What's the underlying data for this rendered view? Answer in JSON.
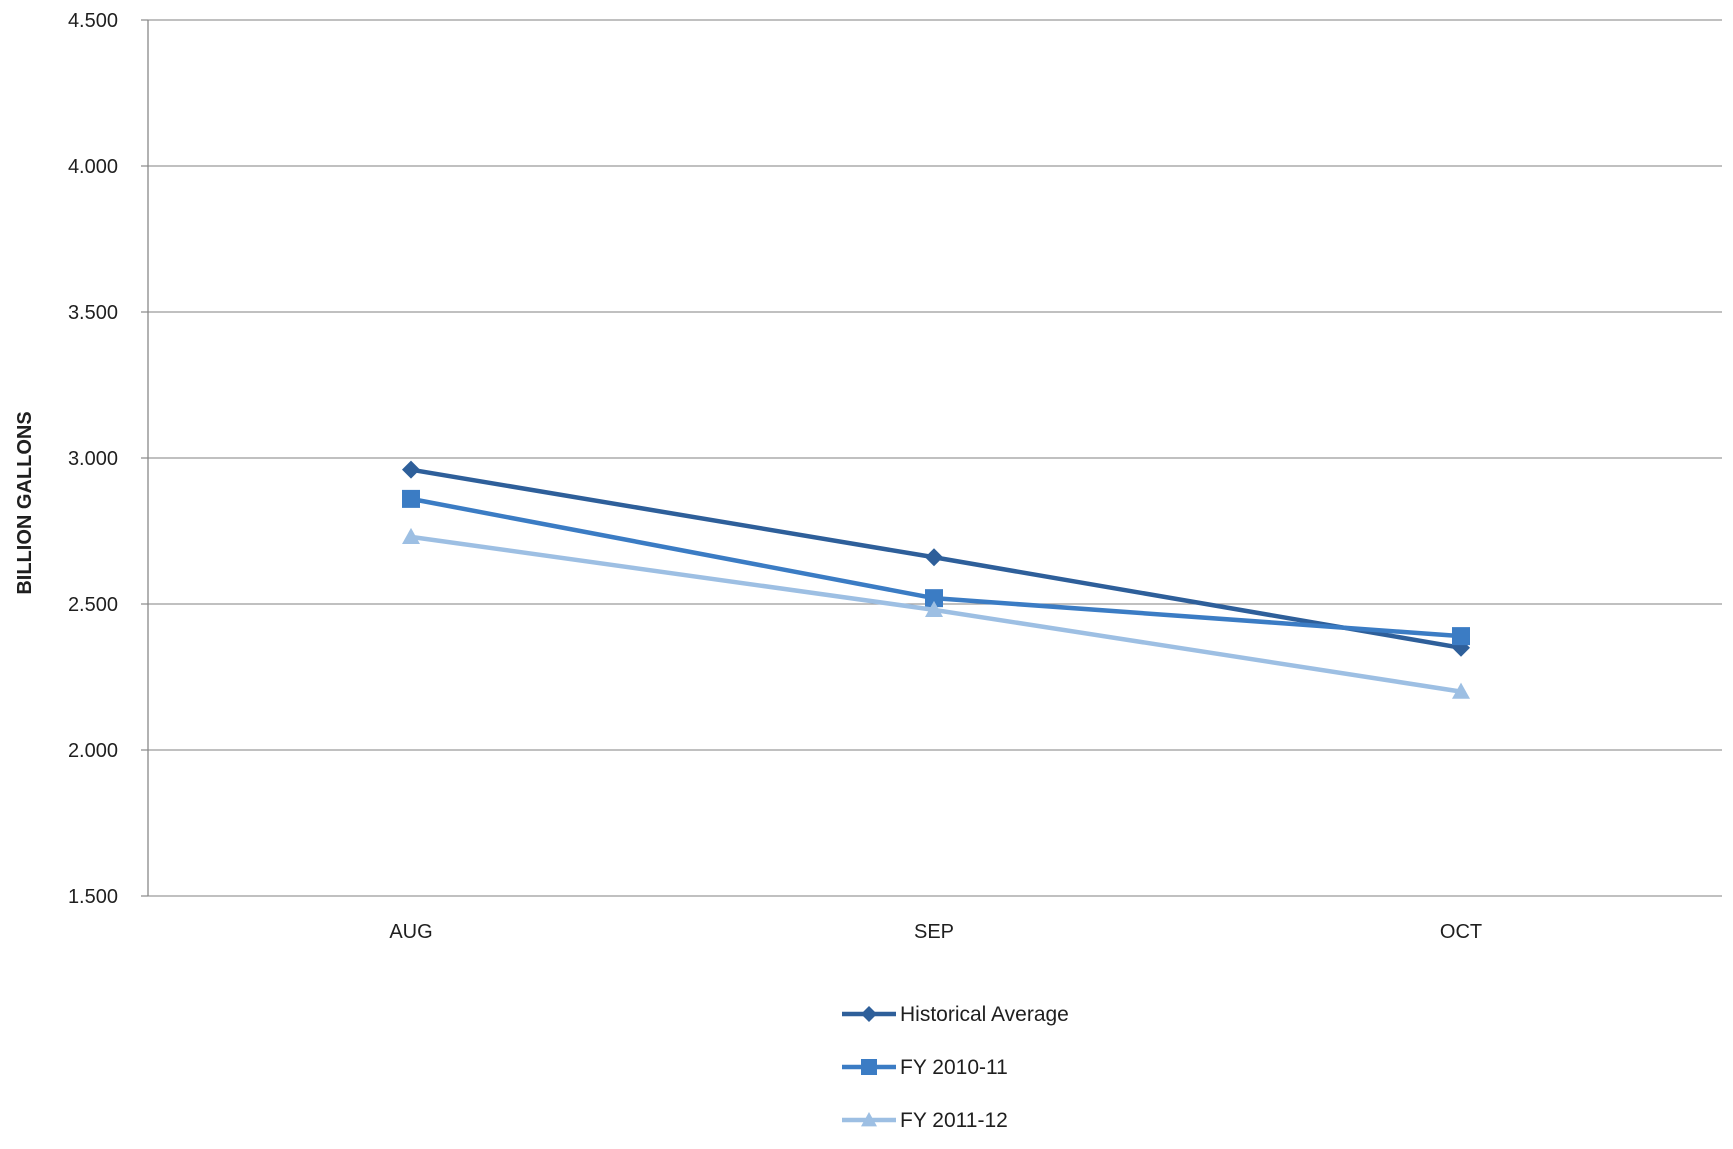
{
  "chart_data": {
    "type": "line",
    "title": "",
    "xlabel": "",
    "ylabel": "BILLION GALLONS",
    "categories": [
      "AUG",
      "SEP",
      "OCT"
    ],
    "ylim": [
      1.5,
      4.5
    ],
    "y_ticks": [
      1.5,
      2.0,
      2.5,
      3.0,
      3.5,
      4.0,
      4.5
    ],
    "y_tick_labels": [
      "1.500",
      "2.000",
      "2.500",
      "3.000",
      "3.500",
      "4.000",
      "4.500"
    ],
    "grid": true,
    "legend_position": "bottom",
    "series": [
      {
        "name": "Historical Average",
        "values": [
          2.96,
          2.66,
          2.35
        ],
        "color": "#2e5f9a",
        "marker": "diamond"
      },
      {
        "name": "FY 2010-11",
        "values": [
          2.86,
          2.52,
          2.39
        ],
        "color": "#3b7cc4",
        "marker": "square"
      },
      {
        "name": "FY 2011-12",
        "values": [
          2.73,
          2.48,
          2.2
        ],
        "color": "#9dbfe3",
        "marker": "triangle"
      }
    ]
  }
}
